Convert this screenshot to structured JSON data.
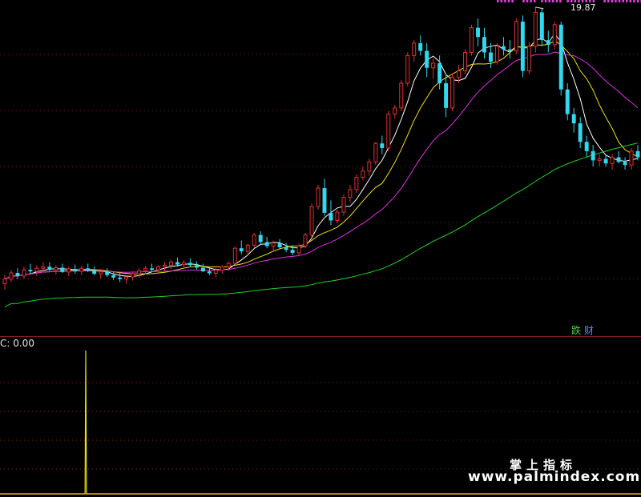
{
  "chart_data": [
    {
      "type": "candlestick",
      "peak_label": "19.87",
      "tags": [
        "跌",
        "财"
      ],
      "moving_average_colors": [
        "#ffffff",
        "#f0e000",
        "#e030e0",
        "#20d020"
      ],
      "colors": {
        "up": "#e03030",
        "down": "#30d8f0",
        "background": "#000000",
        "grid": "#7a1a1a"
      },
      "candles_ohlc": [
        [
          10.9,
          11.2,
          10.7,
          11.05
        ],
        [
          11.05,
          11.35,
          10.95,
          11.25
        ],
        [
          11.25,
          11.4,
          11.05,
          11.15
        ],
        [
          11.15,
          11.45,
          11.05,
          11.35
        ],
        [
          11.35,
          11.55,
          11.2,
          11.3
        ],
        [
          11.3,
          11.5,
          11.15,
          11.4
        ],
        [
          11.4,
          11.6,
          11.3,
          11.45
        ],
        [
          11.45,
          11.6,
          11.3,
          11.35
        ],
        [
          11.35,
          11.5,
          11.2,
          11.42
        ],
        [
          11.42,
          11.55,
          11.25,
          11.28
        ],
        [
          11.28,
          11.45,
          11.15,
          11.38
        ],
        [
          11.38,
          11.52,
          11.22,
          11.3
        ],
        [
          11.3,
          11.48,
          11.18,
          11.4
        ],
        [
          11.4,
          11.55,
          11.28,
          11.33
        ],
        [
          11.33,
          11.45,
          11.18,
          11.22
        ],
        [
          11.22,
          11.38,
          11.08,
          11.28
        ],
        [
          11.28,
          11.4,
          11.12,
          11.18
        ],
        [
          11.18,
          11.3,
          11.02,
          11.1
        ],
        [
          11.1,
          11.25,
          10.95,
          11.05
        ],
        [
          11.05,
          11.2,
          10.9,
          11.12
        ],
        [
          11.12,
          11.3,
          11.0,
          11.22
        ],
        [
          11.22,
          11.4,
          11.1,
          11.32
        ],
        [
          11.32,
          11.48,
          11.2,
          11.4
        ],
        [
          11.4,
          11.55,
          11.28,
          11.35
        ],
        [
          11.35,
          11.5,
          11.22,
          11.45
        ],
        [
          11.45,
          11.6,
          11.32,
          11.5
        ],
        [
          11.5,
          11.68,
          11.38,
          11.6
        ],
        [
          11.6,
          11.75,
          11.45,
          11.52
        ],
        [
          11.52,
          11.66,
          11.4,
          11.58
        ],
        [
          11.58,
          11.72,
          11.44,
          11.5
        ],
        [
          11.5,
          11.62,
          11.36,
          11.42
        ],
        [
          11.42,
          11.55,
          11.28,
          11.3
        ],
        [
          11.3,
          11.45,
          11.18,
          11.24
        ],
        [
          11.24,
          11.4,
          11.12,
          11.34
        ],
        [
          11.34,
          11.5,
          11.22,
          11.45
        ],
        [
          11.45,
          11.62,
          11.32,
          11.56
        ],
        [
          11.56,
          12.1,
          11.5,
          12.05
        ],
        [
          12.05,
          12.3,
          11.85,
          11.95
        ],
        [
          11.95,
          12.2,
          11.82,
          12.15
        ],
        [
          12.15,
          12.55,
          12.05,
          12.48
        ],
        [
          12.48,
          12.6,
          12.15,
          12.25
        ],
        [
          12.25,
          12.42,
          12.05,
          12.12
        ],
        [
          12.12,
          12.3,
          11.98,
          12.22
        ],
        [
          12.22,
          12.35,
          12.02,
          12.08
        ],
        [
          12.08,
          12.22,
          11.92,
          12.0
        ],
        [
          12.0,
          12.15,
          11.82,
          11.9
        ],
        [
          11.9,
          12.2,
          11.8,
          12.12
        ],
        [
          12.12,
          12.55,
          12.05,
          12.48
        ],
        [
          12.48,
          13.5,
          12.4,
          13.4
        ],
        [
          13.4,
          14.1,
          13.3,
          14.0
        ],
        [
          14.0,
          14.3,
          13.1,
          13.2
        ],
        [
          13.2,
          13.6,
          12.8,
          12.95
        ],
        [
          12.95,
          13.3,
          12.85,
          13.22
        ],
        [
          13.22,
          13.8,
          13.1,
          13.7
        ],
        [
          13.7,
          14.1,
          13.55,
          13.95
        ],
        [
          13.95,
          14.45,
          13.85,
          14.35
        ],
        [
          14.35,
          14.7,
          14.25,
          14.55
        ],
        [
          14.55,
          14.95,
          14.4,
          14.85
        ],
        [
          14.85,
          15.5,
          14.75,
          15.45
        ],
        [
          15.45,
          15.7,
          15.1,
          15.3
        ],
        [
          15.3,
          16.5,
          15.2,
          16.4
        ],
        [
          16.4,
          16.7,
          16.25,
          16.6
        ],
        [
          16.6,
          17.5,
          16.5,
          17.4
        ],
        [
          17.4,
          18.4,
          17.3,
          18.3
        ],
        [
          18.3,
          18.8,
          18.1,
          18.7
        ],
        [
          18.7,
          18.95,
          18.3,
          18.45
        ],
        [
          18.45,
          18.7,
          17.6,
          17.9
        ],
        [
          17.9,
          18.2,
          17.55,
          18.05
        ],
        [
          18.05,
          18.3,
          17.2,
          17.4
        ],
        [
          17.4,
          17.7,
          16.3,
          16.6
        ],
        [
          16.6,
          17.7,
          16.5,
          17.6
        ],
        [
          17.6,
          18.0,
          17.4,
          17.8
        ],
        [
          17.8,
          18.5,
          17.7,
          18.4
        ],
        [
          18.4,
          19.3,
          18.3,
          19.2
        ],
        [
          19.2,
          19.5,
          18.6,
          18.9
        ],
        [
          18.9,
          19.2,
          18.2,
          18.4
        ],
        [
          18.4,
          18.7,
          17.9,
          18.1
        ],
        [
          18.1,
          18.7,
          18.0,
          18.6
        ],
        [
          18.6,
          18.9,
          18.3,
          18.5
        ],
        [
          18.5,
          18.8,
          18.2,
          18.45
        ],
        [
          18.45,
          19.5,
          18.35,
          19.4
        ],
        [
          19.4,
          19.6,
          17.6,
          17.8
        ],
        [
          17.8,
          18.75,
          17.7,
          18.6
        ],
        [
          18.6,
          19.87,
          18.4,
          19.7
        ],
        [
          19.7,
          19.85,
          18.6,
          18.8
        ],
        [
          18.8,
          19.1,
          18.4,
          18.65
        ],
        [
          18.65,
          19.4,
          18.5,
          19.3
        ],
        [
          19.3,
          19.4,
          17.0,
          17.2
        ],
        [
          17.2,
          17.4,
          16.2,
          16.4
        ],
        [
          16.4,
          16.6,
          15.8,
          16.1
        ],
        [
          16.1,
          16.3,
          15.3,
          15.5
        ],
        [
          15.5,
          15.7,
          15.0,
          15.2
        ],
        [
          15.2,
          15.4,
          14.7,
          14.9
        ],
        [
          14.9,
          15.1,
          14.7,
          14.95
        ],
        [
          14.95,
          15.1,
          14.7,
          14.8
        ],
        [
          14.8,
          15.1,
          14.6,
          15.0
        ],
        [
          15.0,
          15.2,
          14.8,
          14.85
        ],
        [
          14.85,
          15.0,
          14.6,
          14.75
        ],
        [
          14.75,
          15.3,
          14.6,
          15.2
        ],
        [
          15.2,
          15.4,
          14.9,
          15.0
        ]
      ],
      "ma_periods": [
        5,
        10,
        20,
        60
      ]
    },
    {
      "type": "line",
      "label": "C: 0.00",
      "line_color": "#f0e000",
      "values": [
        0,
        0,
        0,
        0,
        0,
        0,
        0,
        0,
        0,
        0,
        0,
        0,
        0,
        0,
        0,
        0,
        0,
        0,
        0,
        0,
        0,
        0,
        0,
        0,
        0,
        0,
        0,
        0,
        0,
        0,
        0,
        0,
        0,
        0,
        0,
        0,
        0,
        0,
        0,
        0,
        0,
        0,
        0,
        0,
        0,
        0,
        0,
        0,
        0,
        0,
        0,
        0,
        0,
        0,
        0,
        0,
        0,
        0,
        0,
        0,
        0,
        0,
        0,
        0,
        0,
        0,
        0,
        0,
        0,
        0,
        0,
        0,
        0,
        0,
        0,
        0,
        0,
        0,
        0,
        0,
        0,
        0,
        0,
        0,
        0,
        0,
        0,
        0,
        0,
        0,
        0,
        0,
        0,
        0,
        0,
        0,
        0,
        0,
        0,
        0,
        0,
        0,
        0,
        0,
        0,
        0,
        0,
        0,
        0,
        0,
        0,
        0,
        0,
        0,
        0,
        0,
        0,
        0,
        0,
        0,
        0,
        0,
        0,
        0,
        1,
        0,
        0,
        0,
        0,
        0,
        0,
        0,
        0,
        0,
        0,
        0,
        0,
        0,
        0,
        0,
        0,
        0,
        0,
        0,
        0,
        0,
        0,
        0,
        0,
        0,
        0,
        0,
        0,
        0,
        0,
        0,
        0,
        0,
        0,
        0,
        0,
        0,
        0,
        0,
        0,
        0,
        0,
        0,
        0,
        0,
        0,
        0,
        0,
        0,
        0,
        0,
        0,
        0,
        0,
        0,
        0,
        0,
        0,
        0,
        0,
        0,
        0,
        0,
        0,
        0,
        0,
        0,
        0,
        0,
        0,
        0,
        0,
        0,
        0,
        0,
        0,
        0,
        0,
        0,
        0,
        0,
        0,
        0,
        0,
        0,
        0,
        0,
        0,
        0,
        0,
        0,
        0,
        0,
        0,
        0,
        0,
        0,
        0,
        0,
        0,
        0,
        0,
        0,
        0,
        0,
        0,
        0,
        0,
        0,
        0,
        0,
        0,
        0,
        0,
        0,
        0,
        0,
        0,
        0,
        0,
        0,
        0,
        0,
        0,
        0,
        0,
        0,
        0,
        0,
        0,
        0,
        0,
        0,
        0,
        0,
        0,
        0,
        0,
        0,
        0,
        0,
        0,
        0,
        0,
        0,
        0,
        0,
        0,
        0,
        0,
        0,
        0,
        0,
        0,
        0,
        0,
        0,
        0,
        0,
        0,
        0,
        0,
        0,
        0,
        0,
        0,
        0,
        0,
        0,
        0,
        0,
        0,
        0,
        0,
        0,
        0,
        0,
        0,
        0,
        0,
        0,
        0,
        0,
        0,
        0,
        0,
        0,
        0,
        0,
        0,
        0,
        0,
        0,
        0,
        0,
        0,
        0,
        0,
        0,
        0,
        0,
        0,
        0,
        0,
        0,
        0,
        0,
        0,
        0,
        0,
        0,
        0,
        0,
        0,
        0,
        0,
        0,
        0,
        0,
        0,
        0,
        0,
        0,
        0,
        0,
        0,
        0,
        0,
        0,
        0,
        0,
        0,
        0,
        0,
        0,
        0,
        0,
        0,
        0,
        0,
        0,
        0,
        0,
        0,
        0,
        0,
        0,
        0,
        0,
        0,
        0,
        0,
        0,
        0,
        0,
        0,
        0,
        0,
        0,
        0,
        0,
        0,
        0,
        0,
        0,
        0,
        0,
        0,
        0,
        0,
        0,
        0,
        0,
        0,
        0,
        0,
        0,
        0,
        0,
        0,
        0,
        0,
        0,
        0,
        0,
        0,
        0,
        0,
        0,
        0,
        0,
        0,
        0,
        0,
        0,
        0,
        0,
        0,
        0,
        0,
        0,
        0,
        0,
        0,
        0,
        0,
        0,
        0,
        0,
        0,
        0,
        0,
        0,
        0,
        0,
        0,
        0,
        0,
        0,
        0,
        0,
        0,
        0,
        0,
        0,
        0,
        0,
        0,
        0,
        0,
        0,
        0,
        0,
        0,
        0,
        0,
        0,
        0,
        0,
        0,
        0,
        0,
        0,
        0,
        0,
        0,
        0,
        0,
        0,
        0,
        0,
        0,
        0,
        0,
        0,
        0,
        0,
        0,
        0,
        0,
        0,
        0,
        0,
        0,
        0,
        0,
        0,
        0,
        0,
        0,
        0,
        0,
        0,
        0,
        0,
        0,
        0,
        0,
        0,
        0,
        0,
        0,
        0,
        0,
        0,
        0,
        0,
        0,
        0,
        0,
        0,
        0,
        0,
        0,
        0,
        0,
        0,
        0,
        0,
        0,
        0,
        0,
        0,
        0,
        0,
        0,
        0,
        0,
        0,
        0,
        0,
        0,
        0,
        0,
        0,
        0,
        0,
        0,
        0,
        0,
        0,
        0,
        0,
        0,
        0,
        0,
        0,
        0,
        0,
        0,
        0,
        0,
        0,
        0,
        0,
        0,
        0,
        0,
        0,
        0,
        0,
        0,
        0,
        0,
        0,
        0,
        0,
        0,
        0,
        0,
        0,
        0,
        0,
        0,
        0,
        0,
        0,
        0,
        0,
        0,
        0,
        0,
        0,
        0,
        0,
        0,
        0,
        0,
        0,
        0,
        0,
        0,
        0,
        0,
        0,
        0,
        0,
        0,
        0,
        0,
        0,
        0,
        0,
        0,
        0,
        0,
        0,
        0,
        0,
        0,
        0,
        0,
        0,
        0,
        0,
        0,
        0,
        0,
        0,
        0,
        0,
        0,
        0,
        0,
        0,
        0,
        0,
        0,
        0,
        0,
        0,
        0,
        0,
        0,
        0,
        0,
        0,
        0,
        0,
        0,
        0,
        0,
        0,
        0,
        0,
        0,
        0,
        0,
        0,
        0,
        0,
        0,
        0,
        0,
        0,
        0,
        0,
        0,
        0,
        0,
        0,
        0,
        0,
        0,
        0,
        0,
        0,
        0,
        0,
        0,
        0,
        0,
        0,
        0,
        0,
        0,
        0,
        0,
        0,
        0,
        0,
        0,
        0,
        0,
        0,
        0,
        0,
        0,
        0,
        0,
        0,
        0,
        0,
        0,
        0,
        0,
        0,
        0,
        0,
        0,
        0,
        0,
        0,
        0,
        0,
        0,
        0,
        0,
        0,
        0,
        0,
        0,
        0,
        0,
        0,
        0,
        0,
        0,
        0,
        0,
        0,
        0,
        0,
        0,
        0,
        0,
        0,
        0,
        0,
        0,
        0,
        0,
        0,
        0,
        0,
        0,
        0,
        0,
        0,
        0,
        0,
        0,
        0,
        0,
        0,
        0,
        0,
        0,
        0,
        0,
        0,
        0,
        0,
        0,
        0,
        0,
        0,
        0,
        0,
        0,
        0,
        0,
        0,
        0,
        0,
        0,
        0,
        0,
        0,
        0,
        0,
        0,
        0,
        0,
        0,
        0,
        0,
        0,
        0,
        0,
        0,
        0,
        0,
        0,
        0,
        0,
        0,
        0,
        0,
        0,
        0,
        0,
        0,
        0,
        0,
        0,
        0,
        0,
        0,
        0,
        0,
        0,
        0,
        0,
        0,
        0,
        0,
        0,
        0,
        0,
        0,
        0,
        0,
        0,
        0,
        0,
        0,
        0,
        0,
        0,
        0,
        0,
        0,
        0,
        0,
        0,
        0,
        0,
        0,
        0,
        0,
        0,
        0,
        0,
        0,
        0,
        0,
        0,
        0,
        0,
        0,
        0,
        0,
        0,
        0,
        0,
        0,
        0,
        0,
        0,
        0,
        0,
        0,
        0,
        0,
        0,
        0,
        0,
        0,
        0,
        0,
        0,
        0,
        0,
        0,
        0,
        0,
        0,
        0,
        0,
        0,
        0,
        0,
        0,
        0,
        0,
        0,
        0,
        0,
        0,
        0,
        0,
        0,
        0,
        0,
        0,
        0,
        0,
        0,
        0,
        0,
        0,
        0,
        0,
        0,
        0,
        0,
        0,
        0,
        0,
        0,
        0,
        0,
        0,
        0,
        0,
        0,
        0,
        0,
        0,
        0,
        0,
        0,
        0,
        0,
        0,
        0,
        0,
        0,
        0,
        0,
        0,
        0
      ]
    }
  ],
  "watermark": {
    "brand_cn": "掌上指标",
    "url": "www.palmindex.com"
  }
}
